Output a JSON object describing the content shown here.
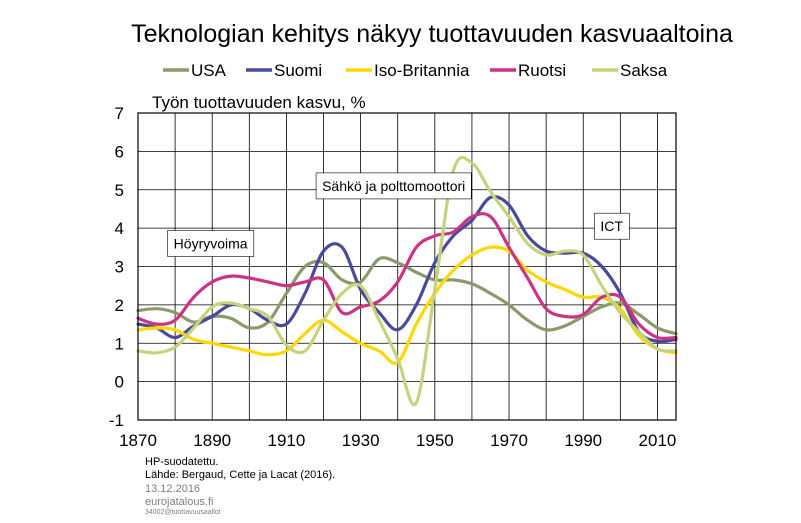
{
  "footer": {
    "note": "HP-suodatettu.",
    "source": "Lähde: Bergaud, Cette ja Lacat (2016).",
    "date": "13.12.2016",
    "site": "eurojatalous.fi",
    "code": "34002@tuottavuusaallot"
  },
  "chart_data": {
    "type": "line",
    "title": "Teknologian kehitys näkyy tuottavuuden kasvuaaltoina",
    "ylabel": "Työn tuottavuuden kasvu, %",
    "xlabel": "",
    "xlim": [
      1870,
      2015
    ],
    "ylim": [
      -1,
      7
    ],
    "xticks": [
      1870,
      1890,
      1910,
      1930,
      1950,
      1970,
      1990,
      2010
    ],
    "yticks": [
      -1,
      0,
      1,
      2,
      3,
      4,
      5,
      6,
      7
    ],
    "grid": true,
    "legend_position": "top",
    "x": [
      1870,
      1875,
      1880,
      1885,
      1890,
      1895,
      1900,
      1905,
      1910,
      1915,
      1920,
      1925,
      1930,
      1935,
      1940,
      1945,
      1950,
      1955,
      1960,
      1965,
      1970,
      1975,
      1980,
      1985,
      1990,
      1995,
      2000,
      2005,
      2010,
      2015
    ],
    "series": [
      {
        "name": "USA",
        "color": "#8a9a6a",
        "values": [
          1.85,
          1.9,
          1.8,
          1.55,
          1.7,
          1.65,
          1.4,
          1.55,
          2.3,
          3.0,
          3.1,
          2.65,
          2.6,
          3.2,
          3.1,
          2.85,
          2.65,
          2.65,
          2.55,
          2.3,
          2.0,
          1.6,
          1.35,
          1.45,
          1.7,
          1.95,
          2.05,
          1.75,
          1.4,
          1.25
        ]
      },
      {
        "name": "Suomi",
        "color": "#4a4a9a",
        "values": [
          1.5,
          1.4,
          1.15,
          1.45,
          1.7,
          2.0,
          1.9,
          1.6,
          1.5,
          2.3,
          3.4,
          3.5,
          2.4,
          1.8,
          1.35,
          2.0,
          3.1,
          3.8,
          4.2,
          4.8,
          4.6,
          3.8,
          3.4,
          3.35,
          3.35,
          3.0,
          2.3,
          1.3,
          1.05,
          1.1
        ]
      },
      {
        "name": "Iso-Britannia",
        "color": "#ffd700",
        "values": [
          1.35,
          1.4,
          1.35,
          1.1,
          1.0,
          0.9,
          0.8,
          0.7,
          0.8,
          1.25,
          1.6,
          1.3,
          1.0,
          0.8,
          0.5,
          1.5,
          2.3,
          2.9,
          3.3,
          3.5,
          3.4,
          2.9,
          2.6,
          2.4,
          2.2,
          2.2,
          1.9,
          1.2,
          0.85,
          0.75
        ]
      },
      {
        "name": "Ruotsi",
        "color": "#cc3383",
        "values": [
          1.65,
          1.5,
          1.6,
          2.2,
          2.6,
          2.75,
          2.7,
          2.6,
          2.5,
          2.6,
          2.65,
          1.8,
          1.95,
          2.1,
          2.6,
          3.5,
          3.8,
          3.9,
          4.3,
          4.3,
          3.5,
          2.7,
          1.9,
          1.7,
          1.75,
          2.2,
          2.2,
          1.5,
          1.15,
          1.15
        ]
      },
      {
        "name": "Saksa",
        "color": "#c5d47c",
        "values": [
          0.8,
          0.75,
          0.9,
          1.4,
          1.95,
          2.05,
          1.9,
          1.7,
          0.95,
          0.8,
          1.6,
          2.3,
          2.5,
          1.6,
          0.6,
          -0.55,
          2.4,
          5.5,
          5.7,
          4.95,
          4.3,
          3.6,
          3.3,
          3.4,
          3.3,
          2.5,
          1.8,
          1.3,
          0.85,
          0.8
        ]
      }
    ],
    "annotations": [
      {
        "text": "Höyryvoima",
        "x": 1878,
        "y": 3.6
      },
      {
        "text": "Sähkö ja polttomoottori",
        "x": 1918,
        "y": 5.1
      },
      {
        "text": "ICT",
        "x": 1993,
        "y": 4.05
      }
    ]
  }
}
